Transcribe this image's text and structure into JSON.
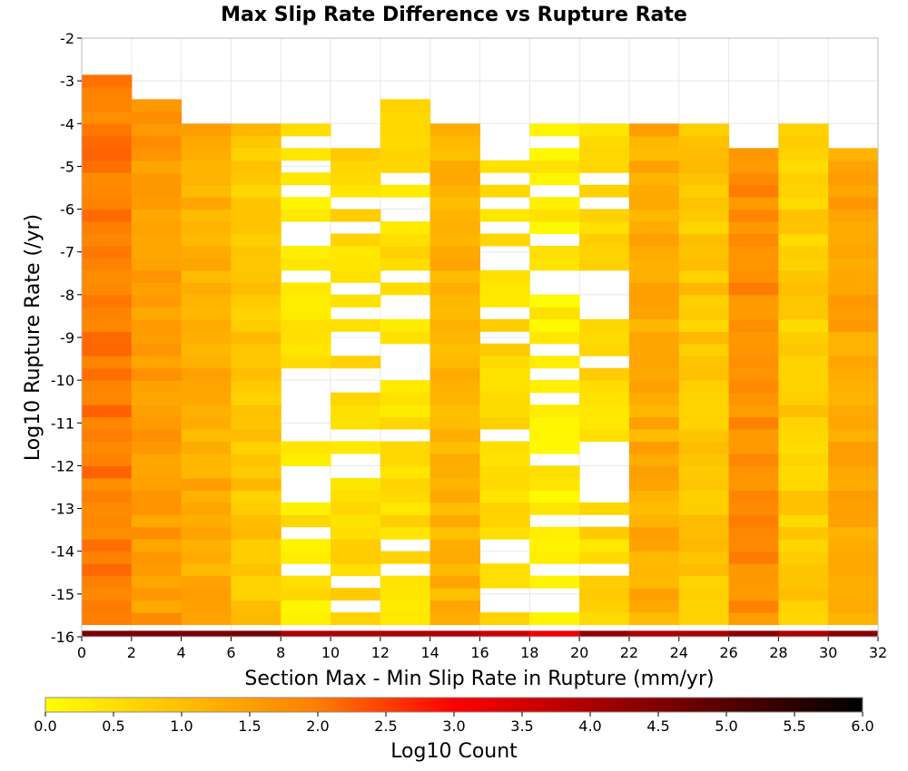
{
  "chart_data": {
    "type": "heatmap",
    "title": "Max Slip Rate Difference vs Rupture Rate",
    "xlabel": "Section Max - Min Slip Rate in Rupture (mm/yr)",
    "ylabel": "Log10 Rupture Rate (/yr)",
    "xlim": [
      0,
      32
    ],
    "ylim": [
      -16,
      -2
    ],
    "x_ticks": [
      "0",
      "2",
      "4",
      "6",
      "8",
      "10",
      "12",
      "14",
      "16",
      "18",
      "20",
      "22",
      "24",
      "26",
      "28",
      "30",
      "32"
    ],
    "y_ticks": [
      "-2",
      "-3",
      "-4",
      "-5",
      "-6",
      "-7",
      "-8",
      "-9",
      "-10",
      "-11",
      "-12",
      "-13",
      "-14",
      "-15",
      "-16"
    ],
    "x_bin_width": 2,
    "y_bin_width": 0.2857,
    "grid": true,
    "columns": [
      {
        "x": 1,
        "y_bottom": -16,
        "y_top": -3.0,
        "value": 2.0
      },
      {
        "x": 3,
        "y_bottom": -16,
        "y_top": -3.57,
        "value": 1.6
      },
      {
        "x": 5,
        "y_bottom": -16,
        "y_top": -3.86,
        "value": 1.3
      },
      {
        "x": 7,
        "y_bottom": -16,
        "y_top": -4.14,
        "value": 0.9
      },
      {
        "x": 9,
        "y_bottom": -16,
        "y_top": -3.86,
        "value": 0.4
      },
      {
        "x": 11,
        "y_bottom": -16,
        "y_top": -4.43,
        "value": 0.6
      },
      {
        "x": 13,
        "y_bottom": -16,
        "y_top": -3.57,
        "value": 0.5
      },
      {
        "x": 15,
        "y_bottom": -16,
        "y_top": -4.14,
        "value": 1.2
      },
      {
        "x": 17,
        "y_bottom": -16,
        "y_top": -5.0,
        "value": 0.6
      },
      {
        "x": 19,
        "y_bottom": -16,
        "y_top": -4.14,
        "value": 0.3
      },
      {
        "x": 21,
        "y_bottom": -16,
        "y_top": -3.86,
        "value": 0.6
      },
      {
        "x": 23,
        "y_bottom": -16,
        "y_top": -4.14,
        "value": 1.3
      },
      {
        "x": 25,
        "y_bottom": -16,
        "y_top": -4.14,
        "value": 0.9
      },
      {
        "x": 27,
        "y_bottom": -16,
        "y_top": -4.43,
        "value": 1.8
      },
      {
        "x": 29,
        "y_bottom": -16,
        "y_top": -4.14,
        "value": 0.8
      },
      {
        "x": 31,
        "y_bottom": -16,
        "y_top": -4.43,
        "value": 1.4
      }
    ],
    "bottom_row_values": [
      4.6,
      4.6,
      4.6,
      4.6,
      4.0,
      4.0,
      4.0,
      4.0,
      3.6,
      3.2,
      4.3,
      4.0,
      4.0,
      4.4,
      4.0,
      4.4
    ],
    "colorbar": {
      "title": "Log10 Count",
      "min": 0.0,
      "max": 6.0,
      "ticks": [
        "0.0",
        "0.5",
        "1.0",
        "1.5",
        "2.0",
        "2.5",
        "3.0",
        "3.5",
        "4.0",
        "4.5",
        "5.0",
        "5.5",
        "6.0"
      ],
      "colors": [
        "#ffff00",
        "#ff8000",
        "#ff0000",
        "#800000",
        "#000000"
      ]
    }
  }
}
